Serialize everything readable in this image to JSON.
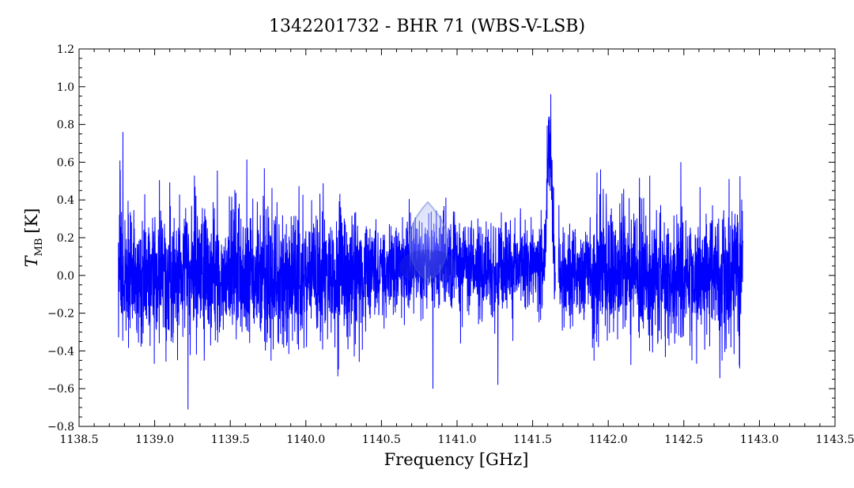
{
  "chart_data": {
    "type": "line",
    "title": "1342201732 - BHR 71 (WBS-V-LSB)",
    "xlabel": "Frequency [GHz]",
    "ylabel_main": "T",
    "ylabel_sub": "MB",
    "ylabel_unit": "[K]",
    "xlim": [
      1138.5,
      1143.5
    ],
    "ylim": [
      -0.8,
      1.2
    ],
    "xticks": [
      1138.5,
      1139.0,
      1139.5,
      1140.0,
      1140.5,
      1141.0,
      1141.5,
      1142.0,
      1142.5,
      1143.0,
      1143.5
    ],
    "xtick_labels": [
      "1138.5",
      "1139.0",
      "1139.5",
      "1140.0",
      "1140.5",
      "1141.0",
      "1141.5",
      "1142.0",
      "1142.5",
      "1143.0",
      "1143.5"
    ],
    "yticks": [
      -0.8,
      -0.6,
      -0.4,
      -0.2,
      0.0,
      0.2,
      0.4,
      0.6,
      0.8,
      1.0,
      1.2
    ],
    "ytick_labels": [
      "−0.8",
      "−0.6",
      "−0.4",
      "−0.2",
      "0.0",
      "0.2",
      "0.4",
      "0.6",
      "0.8",
      "1.0",
      "1.2"
    ],
    "line_color": "#0000ff",
    "grid": false,
    "series": [
      {
        "x_range": [
          1138.76,
          1142.89
        ],
        "baseline": 0.0,
        "noise_rms": 0.18,
        "spectral_line": {
          "center": 1141.61,
          "peak": 0.96
        },
        "gap": [
          1141.65,
          1141.67
        ],
        "extrema_y": [
          {
            "x": 1139.22,
            "y": -0.71
          },
          {
            "x": 1138.79,
            "y": 0.76
          },
          {
            "x": 1141.62,
            "y": 0.96
          },
          {
            "x": 1140.84,
            "y": -0.6
          },
          {
            "x": 1141.27,
            "y": -0.58
          },
          {
            "x": 1142.48,
            "y": 0.6
          }
        ]
      }
    ]
  }
}
